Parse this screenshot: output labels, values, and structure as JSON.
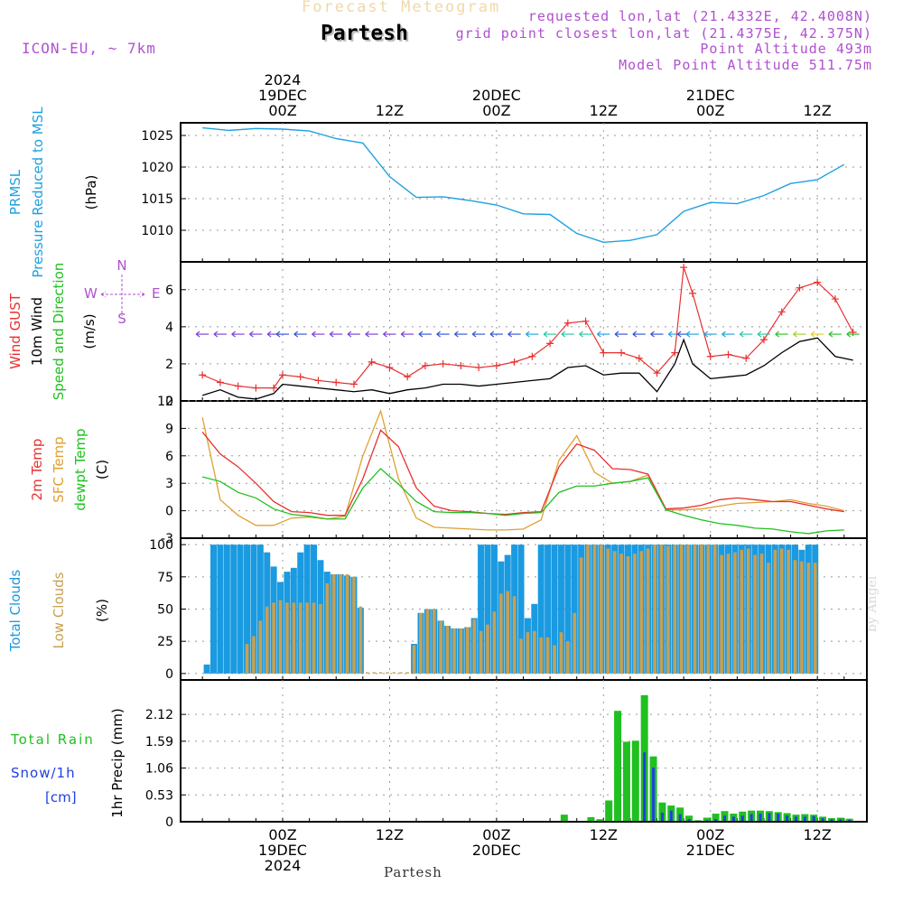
{
  "header": {
    "forecast_title": "Forecast Meteogram",
    "location": "Partesh",
    "model": "ICON-EU, ~ 7km",
    "requested": "requested lon,lat (21.4332E, 42.4008N)",
    "closest": "grid point closest lon,lat (21.4375E, 42.375N)",
    "altitude": "Point Altitude 493m",
    "model_altitude": "Model Point Altitude 511.75m"
  },
  "footer": {
    "location": "Partesh",
    "watermark": "by Angel"
  },
  "colors": {
    "pressure": "#1ea0e0",
    "gust": "#e83030",
    "wind": "#000000",
    "temp": "#e83030",
    "sfc": "#e0a030",
    "dew": "#20c020",
    "total_cloud": "#1a9ae0",
    "low_cloud": "#c8a050",
    "rain": "#20c020",
    "snow": "#2040e0",
    "dir": "#b050d0"
  },
  "chart_data": [
    {
      "type": "line",
      "title": "PRMSL Pressure Reduced to MSL",
      "ylabel_parts": [
        "PRMSL",
        "Pressure Reduced to MSL",
        "(hPa)"
      ],
      "ylim": [
        1005,
        1027
      ],
      "yticks": [
        "1010",
        "1015",
        "1020",
        "1025"
      ],
      "x_hours": [
        -9,
        -6,
        -3,
        0,
        3,
        6,
        9,
        12,
        15,
        18,
        21,
        24,
        27,
        30,
        33,
        36,
        39,
        42,
        45,
        48,
        51,
        54,
        57,
        60,
        63
      ],
      "values": [
        1026.2,
        1025.8,
        1026.1,
        1026.0,
        1025.7,
        1024.5,
        1023.8,
        1018.5,
        1015.2,
        1015.3,
        1014.7,
        1014.0,
        1012.6,
        1012.5,
        1009.5,
        1008.1,
        1008.4,
        1009.3,
        1013.0,
        1014.4,
        1014.2,
        1015.5,
        1017.4,
        1018.0,
        1020.4
      ]
    },
    {
      "type": "line",
      "title": "Wind GUST / 10m Wind Speed and Direction",
      "ylabel_parts": [
        "Wind GUST",
        "10m Wind",
        "Speed and Direction",
        "(m/s)"
      ],
      "compass": {
        "n": "N",
        "s": "S",
        "e": "E",
        "w": "W"
      },
      "ylim": [
        0,
        7.5
      ],
      "yticks": [
        "0",
        "2",
        "4",
        "6"
      ],
      "x_hours": [
        -9,
        -7,
        -5,
        -3,
        -1,
        0,
        2,
        4,
        6,
        8,
        10,
        12,
        14,
        16,
        18,
        20,
        22,
        24,
        26,
        28,
        30,
        32,
        34,
        36,
        38,
        40,
        42,
        44,
        45,
        46,
        48,
        50,
        52,
        54,
        56,
        58,
        60,
        62,
        64
      ],
      "gust": [
        1.4,
        1.0,
        0.8,
        0.7,
        0.7,
        1.4,
        1.3,
        1.1,
        1.0,
        0.9,
        2.1,
        1.8,
        1.3,
        1.9,
        2.0,
        1.9,
        1.8,
        1.9,
        2.1,
        2.4,
        3.1,
        4.2,
        4.3,
        2.6,
        2.6,
        2.3,
        1.5,
        2.6,
        7.2,
        5.8,
        2.4,
        2.5,
        2.3,
        3.3,
        4.8,
        6.1,
        6.4,
        5.5,
        3.7
      ],
      "speed": [
        0.3,
        0.6,
        0.2,
        0.1,
        0.4,
        0.9,
        0.8,
        0.7,
        0.6,
        0.5,
        0.6,
        0.4,
        0.6,
        0.7,
        0.9,
        0.9,
        0.8,
        0.9,
        1.0,
        1.1,
        1.2,
        1.8,
        1.9,
        1.4,
        1.5,
        1.5,
        0.5,
        2.0,
        3.3,
        2.0,
        1.2,
        1.3,
        1.4,
        1.9,
        2.6,
        3.2,
        3.4,
        2.4,
        2.2
      ],
      "dir_colors": [
        "#7a3ad8",
        "#7a3ad8",
        "#7a3ad8",
        "#7a3ad8",
        "#7a3ad8",
        "#2d4fd8",
        "#2d4fd8",
        "#7a3ad8",
        "#7a3ad8",
        "#7a3ad8",
        "#7a3ad8",
        "#7a3ad8",
        "#7a3ad8",
        "#2d4fd8",
        "#2d4fd8",
        "#2d4fd8",
        "#2d4fd8",
        "#2d4fd8",
        "#2d4fd8",
        "#1aa0e0",
        "#20c8a0",
        "#20c8a0",
        "#20c8a0",
        "#1aa0e0",
        "#2d4fd8",
        "#2d4fd8",
        "#2d4fd8",
        "#1aa0e0",
        "#2d4fd8",
        "#1aa0e0",
        "#1aa0e0",
        "#1aa0e0",
        "#20c8a0",
        "#20c8a0",
        "#20c020",
        "#a0d020",
        "#e0d020",
        "#20c020",
        "#20c020"
      ]
    },
    {
      "type": "line",
      "title": "2m Temp / SFC Temp / dewpt Temp",
      "ylabel_parts": [
        "2m Temp",
        "SFC Temp",
        "dewpt Temp",
        "(C)"
      ],
      "ylim": [
        -3,
        12
      ],
      "yticks": [
        "-3",
        "0",
        "3",
        "6",
        "9",
        "12"
      ],
      "x_hours": [
        -9,
        -7,
        -5,
        -3,
        -1,
        1,
        3,
        5,
        7,
        9,
        11,
        13,
        15,
        17,
        19,
        21,
        23,
        25,
        27,
        29,
        31,
        33,
        35,
        37,
        39,
        41,
        43,
        45,
        47,
        49,
        51,
        53,
        55,
        57,
        59,
        61,
        63
      ],
      "t2m": [
        8.6,
        6.2,
        4.8,
        3.0,
        1.0,
        -0.1,
        -0.2,
        -0.5,
        -0.5,
        3.5,
        8.8,
        7.0,
        2.5,
        0.5,
        0.0,
        -0.1,
        -0.3,
        -0.4,
        -0.2,
        -0.1,
        4.8,
        7.3,
        6.6,
        4.6,
        4.5,
        4.0,
        0.2,
        0.3,
        0.6,
        1.2,
        1.4,
        1.2,
        1.0,
        1.0,
        0.6,
        0.2,
        -0.1
      ],
      "sfc": [
        10.2,
        1.2,
        -0.5,
        -1.6,
        -1.6,
        -0.8,
        -0.7,
        -0.9,
        -0.6,
        6.0,
        10.9,
        3.5,
        -0.8,
        -1.8,
        -1.9,
        -2.0,
        -2.1,
        -2.1,
        -2.0,
        -1.0,
        5.5,
        8.2,
        4.2,
        3.0,
        3.2,
        3.9,
        0.1,
        0.1,
        0.2,
        0.5,
        0.8,
        0.9,
        1.0,
        1.2,
        0.8,
        0.5,
        0.0
      ],
      "dew": [
        3.7,
        3.2,
        2.0,
        1.4,
        0.2,
        -0.4,
        -0.6,
        -0.9,
        -0.9,
        2.5,
        4.6,
        2.9,
        1.0,
        -0.1,
        -0.2,
        -0.2,
        -0.3,
        -0.5,
        -0.3,
        -0.2,
        2.0,
        2.7,
        2.7,
        3.0,
        3.2,
        3.6,
        0.1,
        -0.5,
        -1.0,
        -1.4,
        -1.6,
        -1.9,
        -2.0,
        -2.3,
        -2.5,
        -2.2,
        -2.1
      ]
    },
    {
      "type": "bar",
      "title": "Total Clouds / Low Clouds",
      "ylabel_parts": [
        "Total Clouds",
        "Low Clouds",
        "(%)"
      ],
      "ylim": [
        -5,
        105
      ],
      "yticks": [
        "0",
        "25",
        "50",
        "75",
        "100"
      ],
      "first_hour": -8.5,
      "total": [
        7,
        100,
        100,
        100,
        100,
        100,
        100,
        100,
        100,
        94,
        83,
        71,
        79,
        82,
        94,
        100,
        100,
        88,
        79,
        77,
        77,
        76,
        75,
        51,
        0,
        0,
        0,
        0,
        0,
        0,
        0,
        23,
        47,
        50,
        50,
        41,
        37,
        35,
        35,
        36,
        43,
        100,
        100,
        100,
        87,
        92,
        100,
        100,
        43,
        54,
        100,
        100,
        100,
        100,
        100,
        100,
        100,
        100,
        100,
        100,
        100,
        100,
        100,
        100,
        100,
        100,
        100,
        100,
        100,
        100,
        100,
        100,
        100,
        100,
        100,
        100,
        100,
        100,
        100,
        100,
        100,
        100,
        100,
        100,
        100,
        100,
        100,
        100,
        100,
        96,
        100,
        100
      ],
      "low": [
        0,
        0,
        0,
        0,
        0,
        0,
        23,
        29,
        41,
        52,
        55,
        57,
        55,
        55,
        55,
        55,
        55,
        54,
        70,
        77,
        77,
        77,
        75,
        52,
        1,
        1,
        1,
        1,
        1,
        1,
        1,
        22,
        47,
        50,
        50,
        41,
        37,
        35,
        35,
        36,
        42,
        33,
        38,
        48,
        62,
        64,
        60,
        27,
        32,
        33,
        28,
        28,
        22,
        32,
        25,
        47,
        90,
        100,
        100,
        100,
        97,
        95,
        93,
        91,
        93,
        95,
        97,
        100,
        100,
        99,
        100,
        100,
        100,
        100,
        100,
        100,
        100,
        92,
        93,
        94,
        96,
        97,
        92,
        93,
        86,
        96,
        97,
        96,
        88,
        87,
        86,
        86
      ]
    },
    {
      "type": "bar",
      "title": "1hr Precip (mm)",
      "ylabel_parts": [
        "Total Rain",
        "Snow/1h",
        "[cm]",
        "1hr Precip (mm)"
      ],
      "ylim": [
        0,
        2.8
      ],
      "yticks": [
        "0",
        "0.53",
        "1.06",
        "1.59",
        "2.12"
      ],
      "x_hours": [
        32,
        35,
        36,
        37,
        38,
        39,
        40,
        41,
        42,
        43,
        44,
        45,
        46,
        47,
        48,
        49,
        50,
        51,
        52,
        53,
        54,
        55,
        56,
        57,
        58,
        59,
        60,
        61,
        62,
        63,
        64
      ],
      "rain": [
        0.14,
        0.09,
        0.05,
        0.42,
        2.19,
        1.58,
        1.6,
        2.5,
        1.29,
        0.38,
        0.32,
        0.28,
        0.12,
        0.03,
        0.08,
        0.16,
        0.21,
        0.16,
        0.2,
        0.22,
        0.22,
        0.21,
        0.19,
        0.17,
        0.14,
        0.15,
        0.14,
        0.1,
        0.07,
        0.08,
        0.06
      ],
      "snow": [
        0,
        0,
        0,
        0,
        0,
        0,
        0,
        1.37,
        1.07,
        0.18,
        0.22,
        0.15,
        0.05,
        0.02,
        0.03,
        0.05,
        0.12,
        0.1,
        0.12,
        0.15,
        0.16,
        0.17,
        0.16,
        0.12,
        0.1,
        0.1,
        0.11,
        0.07,
        0.05,
        0.05,
        0.04
      ]
    }
  ],
  "time_axis": {
    "top_labels": [
      {
        "lines": [
          "2024",
          "19DEC",
          "00Z"
        ]
      },
      {
        "lines": [
          "12Z"
        ]
      },
      {
        "lines": [
          "20DEC",
          "00Z"
        ]
      },
      {
        "lines": [
          "12Z"
        ]
      },
      {
        "lines": [
          "21DEC",
          "00Z"
        ]
      },
      {
        "lines": [
          "12Z"
        ]
      }
    ],
    "bottom_labels": [
      {
        "lines": [
          "00Z",
          "19DEC",
          "2024"
        ]
      },
      {
        "lines": [
          "12Z"
        ]
      },
      {
        "lines": [
          "00Z",
          "20DEC"
        ]
      },
      {
        "lines": [
          "12Z"
        ]
      },
      {
        "lines": [
          "00Z",
          "21DEC"
        ]
      },
      {
        "lines": [
          "12Z"
        ]
      }
    ]
  }
}
